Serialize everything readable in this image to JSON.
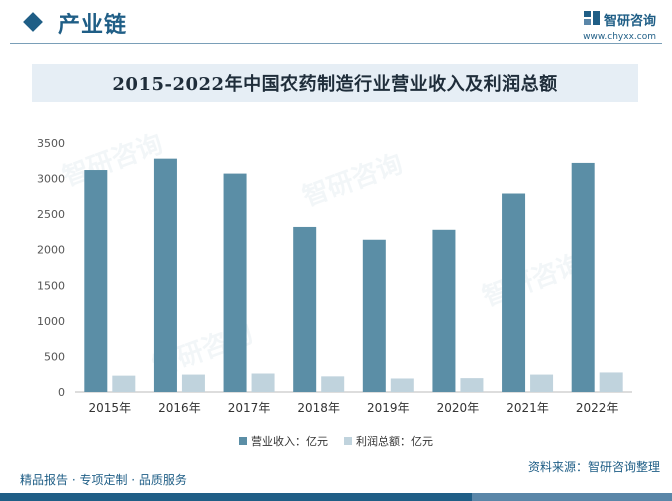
{
  "header": {
    "section_title": "产业链",
    "brand_name": "智研咨询",
    "brand_url": "www.chyxx.com"
  },
  "chart_title": "2015-2022年中国农药制造行业营业收入及利润总额",
  "colors": {
    "revenue": "#5b8ea6",
    "profit": "#c0d3dd",
    "accent": "#1f5e86"
  },
  "chart_data": {
    "type": "bar",
    "title": "2015-2022年中国农药制造行业营业收入及利润总额",
    "categories": [
      "2015年",
      "2016年",
      "2017年",
      "2018年",
      "2019年",
      "2020年",
      "2021年",
      "2022年"
    ],
    "series": [
      {
        "name": "营业收入：亿元",
        "values": [
          3120,
          3280,
          3070,
          2320,
          2140,
          2280,
          2790,
          3220
        ]
      },
      {
        "name": "利润总额：亿元",
        "values": [
          230,
          245,
          260,
          220,
          190,
          195,
          245,
          275
        ]
      }
    ],
    "ylim": [
      0,
      3500
    ],
    "yticks": [
      "0",
      "500",
      "1000",
      "1500",
      "2000",
      "2500",
      "3000",
      "3500"
    ],
    "grid": false,
    "legend_position": "bottom"
  },
  "footer": {
    "left_text": "精品报告 · 专项定制 · 品质服务",
    "source_text": "资料来源：智研咨询整理"
  }
}
